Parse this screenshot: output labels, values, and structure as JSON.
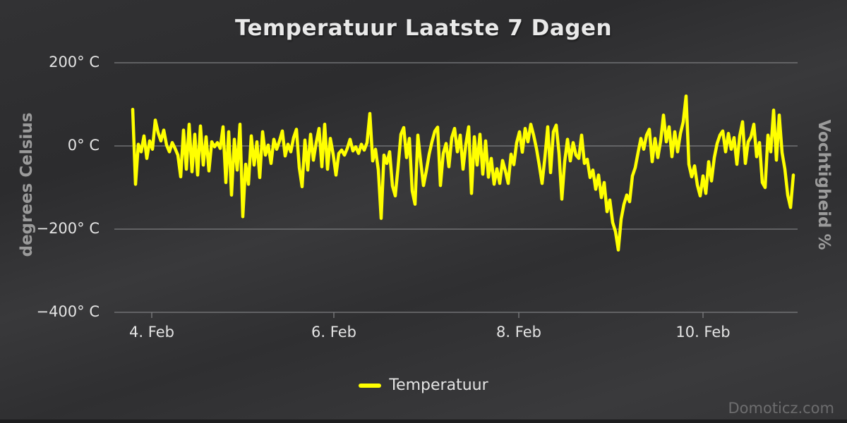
{
  "page": {
    "watermark": "Domoticz.com",
    "colors": {
      "background": "#313133",
      "grid": "#7d7e80",
      "tick_text": "#e4e4e4",
      "axis_title_text": "#9b9b9b",
      "title_text": "#e9e9e9",
      "series_line": "#ffff00"
    }
  },
  "chart_data": {
    "type": "line",
    "title": "Temperatuur Laatste 7 Dagen",
    "legend_position": "bottom-center",
    "grid": true,
    "x_axis": {
      "tick_labels": [
        "4. Feb",
        "6. Feb",
        "8. Feb",
        "10. Feb"
      ]
    },
    "y_axis": {
      "title": "degrees Celsius",
      "tick_labels": [
        "200° C",
        "0° C",
        "−200° C",
        "−400° C"
      ],
      "tick_values": [
        200,
        0,
        -200,
        -400
      ],
      "range": [
        -400,
        240
      ]
    },
    "y2_axis": {
      "title": "Vochtigheid %",
      "tick_labels": []
    },
    "series": [
      {
        "name": "Temperatuur",
        "color": "#ffff00",
        "values": [
          88,
          -92,
          4,
          -14,
          24,
          -30,
          12,
          -8,
          62,
          32,
          12,
          38,
          2,
          -14,
          8,
          -6,
          -22,
          -74,
          38,
          -56,
          52,
          -62,
          28,
          -70,
          48,
          -46,
          22,
          -60,
          10,
          -2,
          8,
          -6,
          46,
          -88,
          34,
          -118,
          16,
          -58,
          52,
          -170,
          -44,
          -92,
          24,
          -46,
          10,
          -76,
          34,
          -22,
          2,
          -42,
          16,
          -8,
          12,
          36,
          -24,
          4,
          -14,
          20,
          40,
          -52,
          -98,
          14,
          -58,
          28,
          -34,
          8,
          42,
          -50,
          52,
          -56,
          18,
          -20,
          -70,
          -18,
          -10,
          -22,
          -6,
          16,
          -12,
          -2,
          -18,
          4,
          -10,
          8,
          78,
          -36,
          -8,
          -58,
          -174,
          -22,
          -42,
          -14,
          -96,
          -120,
          -50,
          28,
          44,
          -28,
          18,
          -108,
          -140,
          26,
          -38,
          -95,
          -60,
          -20,
          10,
          35,
          45,
          -95,
          -18,
          6,
          -50,
          20,
          42,
          -14,
          26,
          -56,
          4,
          46,
          -114,
          22,
          -46,
          28,
          -68,
          12,
          -75,
          -30,
          -92,
          -55,
          -90,
          -35,
          -60,
          -90,
          -20,
          -45,
          8,
          34,
          -15,
          42,
          10,
          52,
          26,
          -6,
          -46,
          -90,
          -28,
          46,
          -64,
          34,
          50,
          -18,
          -128,
          -38,
          16,
          -36,
          8,
          -22,
          -30,
          26,
          -42,
          -32,
          -76,
          -58,
          -104,
          -70,
          -124,
          -88,
          -158,
          -130,
          -184,
          -206,
          -250,
          -176,
          -140,
          -118,
          -134,
          -72,
          -52,
          -16,
          18,
          -8,
          26,
          40,
          -38,
          18,
          -28,
          12,
          74,
          10,
          46,
          -26,
          34,
          -14,
          30,
          58,
          120,
          -44,
          -74,
          -48,
          -94,
          -120,
          -72,
          -114,
          -38,
          -84,
          -28,
          6,
          26,
          36,
          -14,
          30,
          -8,
          20,
          -44,
          24,
          58,
          -42,
          10,
          22,
          52,
          -26,
          8,
          -88,
          -100,
          26,
          -14,
          86,
          -34,
          74,
          -16,
          -56,
          -118,
          -148,
          -70
        ]
      }
    ]
  }
}
